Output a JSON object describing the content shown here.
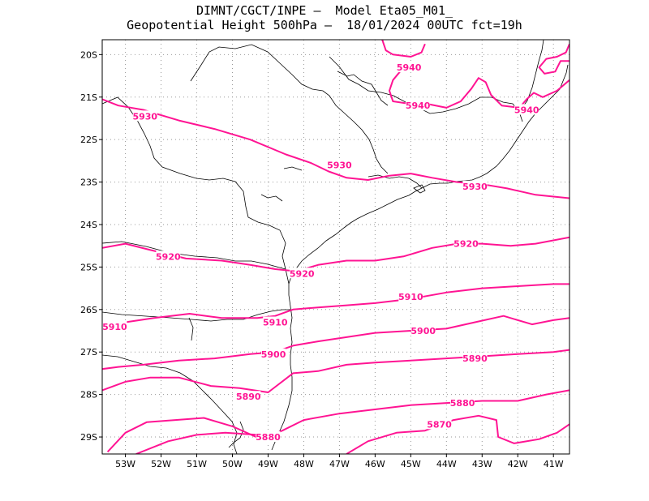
{
  "header": {
    "line1": "DIMNT/CGCT/INPE —  Model Eta05_M01_",
    "line2": "Geopotential Height 500hPa —  18/01/2024 00UTC fct=19h"
  },
  "colors": {
    "contour": "#ff1493",
    "coast": "#000000",
    "grid": "#999999",
    "frame": "#000000"
  },
  "map": {
    "lon_range": [
      -53.65,
      -40.55
    ],
    "lat_range": [
      -29.4,
      -19.65
    ],
    "grid": "dotted",
    "lon_ticks": [
      {
        "value": -53,
        "label": "53W"
      },
      {
        "value": -52,
        "label": "52W"
      },
      {
        "value": -51,
        "label": "51W"
      },
      {
        "value": -50,
        "label": "50W"
      },
      {
        "value": -49,
        "label": "49W"
      },
      {
        "value": -48,
        "label": "48W"
      },
      {
        "value": -47,
        "label": "47W"
      },
      {
        "value": -46,
        "label": "46W"
      },
      {
        "value": -45,
        "label": "45W"
      },
      {
        "value": -44,
        "label": "44W"
      },
      {
        "value": -43,
        "label": "43W"
      },
      {
        "value": -42,
        "label": "42W"
      },
      {
        "value": -41,
        "label": "41W"
      }
    ],
    "lat_ticks": [
      {
        "value": -20,
        "label": "20S"
      },
      {
        "value": -21,
        "label": "21S"
      },
      {
        "value": -22,
        "label": "22S"
      },
      {
        "value": -23,
        "label": "23S"
      },
      {
        "value": -24,
        "label": "24S"
      },
      {
        "value": -25,
        "label": "25S"
      },
      {
        "value": -26,
        "label": "26S"
      },
      {
        "value": -27,
        "label": "27S"
      },
      {
        "value": -28,
        "label": "28S"
      },
      {
        "value": -29,
        "label": "29S"
      }
    ]
  },
  "contours": [
    {
      "level": 5940,
      "lines": [
        [
          [
            -45.8,
            -19.65
          ],
          [
            -45.7,
            -19.9
          ],
          [
            -45.5,
            -20.0
          ],
          [
            -45.0,
            -20.05
          ],
          [
            -44.7,
            -19.95
          ],
          [
            -44.6,
            -19.75
          ]
        ],
        [
          [
            -45.3,
            -20.4
          ],
          [
            -45.5,
            -20.6
          ],
          [
            -45.6,
            -20.85
          ],
          [
            -45.5,
            -21.1
          ],
          [
            -45.1,
            -21.15
          ],
          [
            -44.6,
            -21.15
          ],
          [
            -44.0,
            -21.25
          ],
          [
            -43.6,
            -21.1
          ],
          [
            -43.3,
            -20.8
          ],
          [
            -43.1,
            -20.55
          ],
          [
            -42.9,
            -20.65
          ],
          [
            -42.75,
            -20.95
          ],
          [
            -42.45,
            -21.2
          ],
          [
            -41.95,
            -21.25
          ],
          [
            -41.75,
            -21.05
          ],
          [
            -41.55,
            -20.9
          ],
          [
            -41.3,
            -21.0
          ],
          [
            -40.9,
            -20.85
          ],
          [
            -40.55,
            -20.6
          ]
        ],
        [
          [
            -40.55,
            -20.15
          ],
          [
            -40.8,
            -20.15
          ],
          [
            -40.95,
            -20.4
          ],
          [
            -41.25,
            -20.45
          ],
          [
            -41.4,
            -20.3
          ],
          [
            -41.2,
            -20.1
          ],
          [
            -40.9,
            -20.05
          ],
          [
            -40.65,
            -19.95
          ],
          [
            -40.55,
            -19.75
          ]
        ]
      ],
      "labels": [
        {
          "text": "5940",
          "lon": -45.05,
          "lat": -20.3
        },
        {
          "text": "5940",
          "lon": -44.8,
          "lat": -21.2
        },
        {
          "text": "5940",
          "lon": -41.75,
          "lat": -21.3
        }
      ]
    },
    {
      "level": 5930,
      "lines": [
        [
          [
            -53.65,
            -21.05
          ],
          [
            -53.2,
            -21.2
          ],
          [
            -52.5,
            -21.3
          ],
          [
            -51.5,
            -21.55
          ],
          [
            -50.5,
            -21.75
          ],
          [
            -49.5,
            -22.0
          ],
          [
            -48.5,
            -22.35
          ],
          [
            -47.8,
            -22.55
          ],
          [
            -47.3,
            -22.75
          ],
          [
            -46.8,
            -22.9
          ],
          [
            -46.2,
            -22.95
          ],
          [
            -45.6,
            -22.85
          ],
          [
            -45.0,
            -22.8
          ],
          [
            -44.4,
            -22.9
          ],
          [
            -43.7,
            -23.0
          ],
          [
            -43.0,
            -23.05
          ],
          [
            -42.3,
            -23.15
          ],
          [
            -41.5,
            -23.3
          ],
          [
            -40.55,
            -23.38
          ]
        ]
      ],
      "labels": [
        {
          "text": "5930",
          "lon": -52.45,
          "lat": -21.45
        },
        {
          "text": "5930",
          "lon": -47.0,
          "lat": -22.6
        },
        {
          "text": "5930",
          "lon": -43.2,
          "lat": -23.1
        }
      ]
    },
    {
      "level": 5920,
      "lines": [
        [
          [
            -53.65,
            -24.55
          ],
          [
            -53.0,
            -24.45
          ],
          [
            -52.3,
            -24.6
          ],
          [
            -51.3,
            -24.8
          ],
          [
            -50.3,
            -24.85
          ],
          [
            -49.5,
            -24.95
          ],
          [
            -48.8,
            -25.05
          ],
          [
            -48.2,
            -25.1
          ],
          [
            -47.6,
            -24.95
          ],
          [
            -46.8,
            -24.85
          ],
          [
            -46.0,
            -24.85
          ],
          [
            -45.2,
            -24.75
          ],
          [
            -44.4,
            -24.55
          ],
          [
            -43.7,
            -24.45
          ],
          [
            -43.0,
            -24.45
          ],
          [
            -42.2,
            -24.5
          ],
          [
            -41.5,
            -24.45
          ],
          [
            -40.55,
            -24.3
          ]
        ]
      ],
      "labels": [
        {
          "text": "5920",
          "lon": -51.8,
          "lat": -24.75
        },
        {
          "text": "5920",
          "lon": -48.05,
          "lat": -25.15
        },
        {
          "text": "5920",
          "lon": -43.45,
          "lat": -24.45
        }
      ]
    },
    {
      "level": 5910,
      "lines": [
        [
          [
            -53.5,
            -26.35
          ],
          [
            -53.0,
            -26.3
          ],
          [
            -52.2,
            -26.2
          ],
          [
            -51.2,
            -26.1
          ],
          [
            -50.3,
            -26.2
          ],
          [
            -49.3,
            -26.2
          ],
          [
            -48.8,
            -26.15
          ],
          [
            -48.3,
            -26.0
          ],
          [
            -47.6,
            -25.95
          ],
          [
            -46.8,
            -25.9
          ],
          [
            -46.0,
            -25.85
          ],
          [
            -45.0,
            -25.75
          ],
          [
            -44.0,
            -25.6
          ],
          [
            -43.0,
            -25.5
          ],
          [
            -42.0,
            -25.45
          ],
          [
            -41.0,
            -25.4
          ],
          [
            -40.55,
            -25.4
          ]
        ]
      ],
      "labels": [
        {
          "text": "5910",
          "lon": -53.3,
          "lat": -26.4
        },
        {
          "text": "5910",
          "lon": -48.8,
          "lat": -26.3
        },
        {
          "text": "5910",
          "lon": -45.0,
          "lat": -25.7
        }
      ]
    },
    {
      "level": 5900,
      "lines": [
        [
          [
            -53.65,
            -27.4
          ],
          [
            -53.2,
            -27.35
          ],
          [
            -52.5,
            -27.3
          ],
          [
            -51.5,
            -27.2
          ],
          [
            -50.5,
            -27.15
          ],
          [
            -49.5,
            -27.05
          ],
          [
            -48.8,
            -27.0
          ],
          [
            -48.3,
            -26.85
          ],
          [
            -47.6,
            -26.75
          ],
          [
            -46.8,
            -26.65
          ],
          [
            -46.0,
            -26.55
          ],
          [
            -45.0,
            -26.5
          ],
          [
            -44.0,
            -26.45
          ],
          [
            -43.2,
            -26.3
          ],
          [
            -42.4,
            -26.15
          ],
          [
            -41.6,
            -26.35
          ],
          [
            -41.0,
            -26.25
          ],
          [
            -40.55,
            -26.2
          ]
        ]
      ],
      "labels": [
        {
          "text": "5900",
          "lon": -48.85,
          "lat": -27.05
        },
        {
          "text": "5900",
          "lon": -44.65,
          "lat": -26.5
        }
      ]
    },
    {
      "level": 5890,
      "lines": [
        [
          [
            -53.65,
            -27.9
          ],
          [
            -53.0,
            -27.7
          ],
          [
            -52.3,
            -27.6
          ],
          [
            -51.5,
            -27.6
          ],
          [
            -50.6,
            -27.8
          ],
          [
            -49.8,
            -27.85
          ],
          [
            -49.0,
            -27.95
          ],
          [
            -48.3,
            -27.5
          ],
          [
            -47.6,
            -27.45
          ],
          [
            -46.8,
            -27.3
          ],
          [
            -46.0,
            -27.25
          ],
          [
            -45.0,
            -27.2
          ],
          [
            -44.0,
            -27.15
          ],
          [
            -43.0,
            -27.1
          ],
          [
            -42.0,
            -27.05
          ],
          [
            -41.0,
            -27.0
          ],
          [
            -40.55,
            -26.95
          ]
        ]
      ],
      "labels": [
        {
          "text": "5890",
          "lon": -49.55,
          "lat": -28.05
        },
        {
          "text": "5890",
          "lon": -43.2,
          "lat": -27.15
        }
      ]
    },
    {
      "level": 5880,
      "lines": [
        [
          [
            -53.5,
            -29.35
          ],
          [
            -53.0,
            -28.9
          ],
          [
            -52.4,
            -28.65
          ],
          [
            -51.6,
            -28.6
          ],
          [
            -50.8,
            -28.55
          ],
          [
            -50.0,
            -28.75
          ],
          [
            -49.2,
            -29.05
          ],
          [
            -48.6,
            -28.85
          ],
          [
            -48.0,
            -28.6
          ],
          [
            -47.0,
            -28.45
          ],
          [
            -46.0,
            -28.35
          ],
          [
            -45.0,
            -28.25
          ],
          [
            -44.0,
            -28.2
          ],
          [
            -43.0,
            -28.15
          ],
          [
            -42.0,
            -28.15
          ],
          [
            -41.2,
            -28.0
          ],
          [
            -40.55,
            -27.9
          ]
        ]
      ],
      "labels": [
        {
          "text": "5880",
          "lon": -49.0,
          "lat": -29.0
        },
        {
          "text": "5880",
          "lon": -43.55,
          "lat": -28.2
        }
      ]
    },
    {
      "level": 5870,
      "lines": [
        [
          [
            -52.7,
            -29.4
          ],
          [
            -51.8,
            -29.1
          ],
          [
            -51.0,
            -28.95
          ],
          [
            -50.2,
            -28.9
          ],
          [
            -49.3,
            -28.95
          ]
        ],
        [
          [
            -46.8,
            -29.4
          ],
          [
            -46.2,
            -29.1
          ],
          [
            -45.4,
            -28.9
          ],
          [
            -44.6,
            -28.85
          ],
          [
            -43.8,
            -28.6
          ],
          [
            -43.1,
            -28.5
          ],
          [
            -42.6,
            -28.6
          ],
          [
            -42.55,
            -29.0
          ],
          [
            -42.1,
            -29.15
          ],
          [
            -41.4,
            -29.05
          ],
          [
            -40.9,
            -28.9
          ],
          [
            -40.55,
            -28.7
          ]
        ]
      ],
      "labels": [
        {
          "text": "5870",
          "lon": -44.2,
          "lat": -28.7
        }
      ]
    }
  ]
}
